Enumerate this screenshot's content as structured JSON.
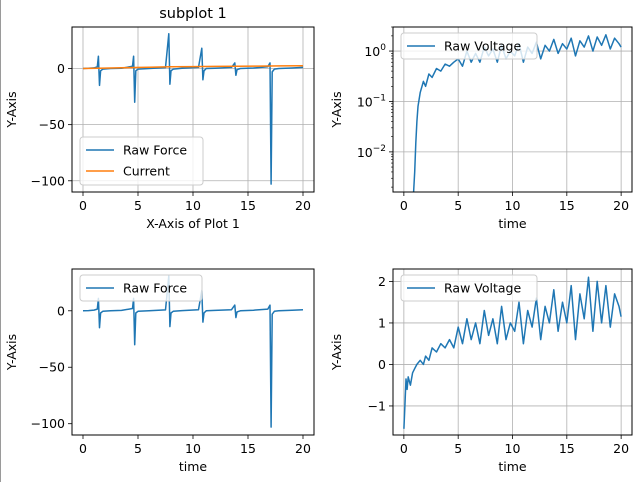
{
  "chart_data": [
    {
      "type": "line",
      "title": "subplot 1",
      "xlabel": "X-Axis of Plot 1",
      "ylabel": "Y-Axis",
      "xlim": [
        -1,
        21
      ],
      "ylim": [
        -110,
        37
      ],
      "xticks": [
        0,
        5,
        10,
        15,
        20
      ],
      "yticks": [
        0,
        -50,
        -100
      ],
      "ytick_labels": [
        "0",
        "−50",
        "−100"
      ],
      "yscale": "linear",
      "grid": true,
      "legend": "lower-left",
      "series": [
        {
          "name": "Raw Force",
          "color": "#1f77b4",
          "x": [
            0,
            0.5,
            1.0,
            1.3,
            1.4,
            1.5,
            1.6,
            1.8,
            2.5,
            3.5,
            4.5,
            4.6,
            4.7,
            4.8,
            5.0,
            6.0,
            7.5,
            7.8,
            7.9,
            8.0,
            8.2,
            9.0,
            10.5,
            10.8,
            10.9,
            11.0,
            11.2,
            12.0,
            13.5,
            13.8,
            13.9,
            14.0,
            14.3,
            15.5,
            16.8,
            17.0,
            17.1,
            17.2,
            17.4,
            17.8,
            19.0,
            20.0
          ],
          "y": [
            0,
            0.2,
            0.6,
            1.5,
            11,
            -15,
            -2,
            -0.5,
            0,
            0.3,
            2,
            11,
            -30,
            -2,
            -0.5,
            0,
            0.8,
            31,
            -14,
            -2,
            -0.5,
            0.2,
            1,
            18,
            -10,
            -2,
            0,
            0.3,
            1,
            5,
            -6,
            -1,
            0,
            0.5,
            1.5,
            5,
            -103,
            -3,
            -0.5,
            0,
            0.5,
            1
          ]
        },
        {
          "name": "Current",
          "color": "#ff7f0e",
          "x": [
            0,
            2,
            4,
            6,
            8,
            10,
            12,
            14,
            16,
            18,
            20
          ],
          "y": [
            0,
            0.4,
            0.8,
            1.2,
            1.5,
            1.7,
            1.9,
            2.1,
            2.2,
            2.3,
            2.5
          ]
        }
      ]
    },
    {
      "type": "line",
      "title": "",
      "xlabel": "time",
      "ylabel": "Y-Axis",
      "xlim": [
        -1,
        21
      ],
      "ylim": [
        0.0016,
        3
      ],
      "xticks": [
        0,
        5,
        10,
        15,
        20
      ],
      "yticks": [
        1,
        0.1,
        0.01
      ],
      "ytick_labels": [
        "10^0",
        "10^-1",
        "10^-2"
      ],
      "yscale": "log",
      "grid": true,
      "legend": "top-left",
      "series": [
        {
          "name": "Raw Voltage",
          "color": "#1f77b4",
          "x": [
            0.9,
            1.0,
            1.1,
            1.2,
            1.3,
            1.5,
            1.8,
            2.0,
            2.3,
            2.6,
            3.0,
            3.4,
            3.8,
            4.2,
            4.6,
            5.0,
            5.4,
            5.8,
            6.2,
            6.6,
            7.0,
            7.4,
            7.8,
            8.2,
            8.6,
            9.0,
            9.4,
            9.8,
            10.2,
            10.6,
            11.0,
            11.4,
            11.8,
            12.2,
            12.6,
            13.0,
            13.4,
            13.8,
            14.2,
            14.6,
            15.0,
            15.4,
            15.8,
            16.2,
            16.6,
            17.0,
            17.4,
            17.8,
            18.2,
            18.6,
            19.0,
            19.4,
            19.8,
            20.0
          ],
          "y": [
            0.0016,
            0.004,
            0.015,
            0.04,
            0.08,
            0.15,
            0.25,
            0.2,
            0.35,
            0.3,
            0.45,
            0.4,
            0.55,
            0.5,
            0.6,
            0.7,
            0.5,
            1.0,
            0.6,
            0.9,
            0.6,
            1.2,
            0.8,
            1.1,
            0.6,
            1.3,
            0.7,
            1.0,
            0.8,
            1.4,
            0.6,
            1.2,
            0.9,
            1.5,
            0.7,
            1.3,
            1.0,
            1.7,
            0.9,
            1.4,
            1.1,
            1.8,
            0.8,
            1.6,
            1.2,
            2.0,
            1.0,
            1.9,
            1.3,
            2.1,
            1.1,
            1.8,
            1.4,
            1.2
          ]
        }
      ]
    },
    {
      "type": "line",
      "title": "",
      "xlabel": "time",
      "ylabel": "Y-Axis",
      "xlim": [
        -1,
        21
      ],
      "ylim": [
        -110,
        37
      ],
      "xticks": [
        0,
        5,
        10,
        15,
        20
      ],
      "yticks": [
        0,
        -50,
        -100
      ],
      "ytick_labels": [
        "0",
        "−50",
        "−100"
      ],
      "yscale": "linear",
      "grid": false,
      "legend": "top-left",
      "series": [
        {
          "name": "Raw Force",
          "color": "#1f77b4",
          "x": [
            0,
            0.5,
            1.0,
            1.3,
            1.4,
            1.5,
            1.6,
            1.8,
            2.5,
            3.5,
            4.5,
            4.6,
            4.7,
            4.8,
            5.0,
            6.0,
            7.5,
            7.8,
            7.9,
            8.0,
            8.2,
            9.0,
            10.5,
            10.8,
            10.9,
            11.0,
            11.2,
            12.0,
            13.5,
            13.8,
            13.9,
            14.0,
            14.3,
            15.5,
            16.8,
            17.0,
            17.1,
            17.2,
            17.4,
            17.8,
            19.0,
            20.0
          ],
          "y": [
            0,
            0.2,
            0.6,
            1.5,
            11,
            -15,
            -2,
            -0.5,
            0,
            0.3,
            2,
            11,
            -30,
            -2,
            -0.5,
            0,
            0.8,
            31,
            -14,
            -2,
            -0.5,
            0.2,
            1,
            18,
            -10,
            -2,
            0,
            0.3,
            1,
            5,
            -6,
            -1,
            0,
            0.5,
            1.5,
            5,
            -103,
            -3,
            -0.5,
            0,
            0.5,
            1
          ]
        }
      ]
    },
    {
      "type": "line",
      "title": "",
      "xlabel": "time",
      "ylabel": "Y-Axis",
      "xlim": [
        -1,
        21
      ],
      "ylim": [
        -1.7,
        2.3
      ],
      "xticks": [
        0,
        5,
        10,
        15,
        20
      ],
      "yticks": [
        -1,
        0,
        1,
        2
      ],
      "ytick_labels": [
        "−1",
        "0",
        "1",
        "2"
      ],
      "yscale": "linear",
      "grid": true,
      "legend": "top-left",
      "series": [
        {
          "name": "Raw Voltage",
          "color": "#1f77b4",
          "x": [
            0,
            0.1,
            0.2,
            0.3,
            0.4,
            0.6,
            0.8,
            1.0,
            1.2,
            1.5,
            1.8,
            2.0,
            2.3,
            2.6,
            3.0,
            3.4,
            3.8,
            4.2,
            4.6,
            5.0,
            5.4,
            5.8,
            6.2,
            6.6,
            7.0,
            7.4,
            7.8,
            8.2,
            8.6,
            9.0,
            9.4,
            9.8,
            10.2,
            10.6,
            11.0,
            11.4,
            11.8,
            12.2,
            12.6,
            13.0,
            13.4,
            13.8,
            14.2,
            14.6,
            15.0,
            15.4,
            15.8,
            16.2,
            16.6,
            17.0,
            17.4,
            17.8,
            18.2,
            18.6,
            19.0,
            19.4,
            19.8,
            20.0
          ],
          "y": [
            -1.55,
            -1.0,
            -0.35,
            -0.6,
            -0.3,
            -0.5,
            -0.2,
            -0.1,
            0.0,
            0.1,
            0.0,
            0.2,
            0.1,
            0.4,
            0.3,
            0.5,
            0.4,
            0.6,
            0.4,
            0.9,
            0.5,
            1.1,
            0.6,
            1.0,
            0.5,
            1.3,
            0.7,
            1.1,
            0.5,
            1.4,
            0.6,
            1.0,
            0.8,
            1.5,
            0.5,
            1.3,
            0.9,
            1.6,
            0.6,
            1.4,
            1.0,
            1.8,
            0.8,
            1.5,
            1.0,
            1.9,
            0.6,
            1.7,
            1.1,
            2.1,
            0.8,
            2.0,
            1.0,
            1.9,
            0.9,
            1.7,
            1.4,
            1.15
          ]
        }
      ]
    }
  ]
}
